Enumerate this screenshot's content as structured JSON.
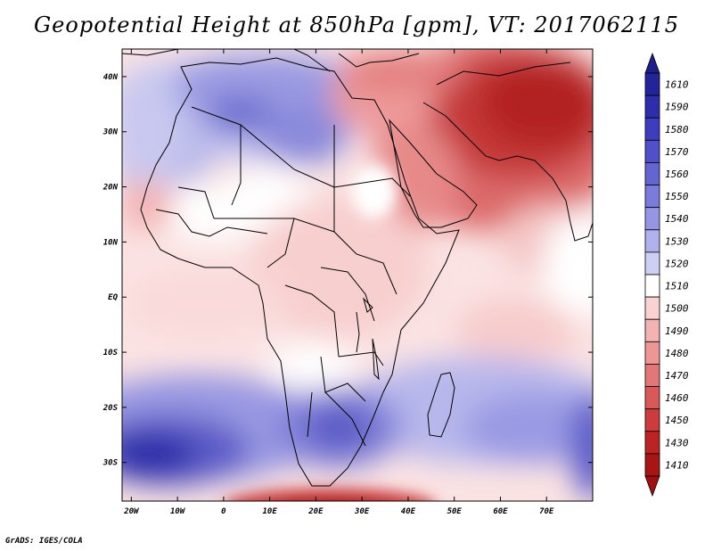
{
  "title": "Geopotential Height at 850hPa [gpm], VT: 2017062115",
  "credit": "GrADS: IGES/COLA",
  "axes": {
    "lon_labels": [
      "20W",
      "10W",
      "0",
      "10E",
      "20E",
      "30E",
      "40E",
      "50E",
      "60E",
      "70E"
    ],
    "lon_values": [
      -20,
      -10,
      0,
      10,
      20,
      30,
      40,
      50,
      60,
      70
    ],
    "lat_labels": [
      "40N",
      "30N",
      "20N",
      "10N",
      "EQ",
      "10S",
      "20S",
      "30S"
    ],
    "lat_values": [
      40,
      30,
      20,
      10,
      0,
      -10,
      -20,
      -30
    ],
    "lon_range": [
      -22,
      80
    ],
    "lat_range": [
      -37,
      45
    ]
  },
  "colorbar": {
    "labels": [
      "1610",
      "1590",
      "1580",
      "1570",
      "1560",
      "1550",
      "1540",
      "1530",
      "1520",
      "1510",
      "1500",
      "1490",
      "1480",
      "1470",
      "1460",
      "1450",
      "1430",
      "1410"
    ],
    "colors": [
      "#23239a",
      "#2e2eac",
      "#3d3dbd",
      "#5050c8",
      "#6565d2",
      "#7b7bdb",
      "#9595e4",
      "#b0b0ec",
      "#cfcff5",
      "#ffffff",
      "#fbd2d2",
      "#f3b3b3",
      "#ec9696",
      "#e37777",
      "#d95959",
      "#cc3c3c",
      "#bb2424",
      "#a81515"
    ],
    "top_color": "#1e1e8c",
    "bottom_color": "#a01010"
  }
}
